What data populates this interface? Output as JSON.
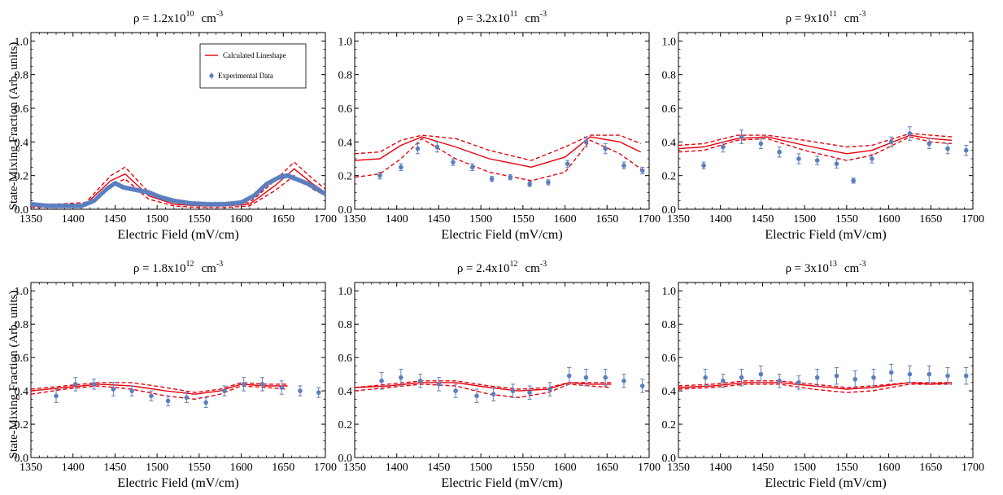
{
  "figure": {
    "ylabel": "State-Mixing Fraction (Arb. units)",
    "xlabel": "Electric Field (mV/cm)",
    "legend": {
      "calc": "Calculated Lineshape",
      "exp": "Experimental Data"
    },
    "colors": {
      "calc": "#e8000b",
      "exp": "#5b7fbe",
      "err": "#5b7fbe"
    }
  },
  "chart_data": [
    {
      "type": "line",
      "title": {
        "base": "ρ = 1.2x10",
        "exp": "10",
        "unit": "cm",
        "unit_exp": "-3"
      },
      "xlim": [
        1350,
        1700
      ],
      "ylim": [
        0,
        1.05
      ],
      "xticks": [
        1350,
        1400,
        1450,
        1500,
        1550,
        1600,
        1650,
        1700
      ],
      "yticks": [
        0.0,
        0.2,
        0.4,
        0.6,
        0.8,
        1.0
      ],
      "legend_position": "top-right",
      "series": [
        {
          "name": "Calculated Lineshape",
          "style": "solid",
          "x": [
            1350,
            1380,
            1415,
            1445,
            1462,
            1490,
            1520,
            1550,
            1580,
            1610,
            1640,
            1663,
            1685,
            1700
          ],
          "y": [
            0.02,
            0.02,
            0.03,
            0.17,
            0.21,
            0.08,
            0.03,
            0.02,
            0.02,
            0.03,
            0.14,
            0.24,
            0.15,
            0.1
          ]
        },
        {
          "style": "dashed",
          "x": [
            1350,
            1380,
            1415,
            1445,
            1462,
            1490,
            1520,
            1550,
            1580,
            1610,
            1640,
            1663,
            1685,
            1700
          ],
          "y": [
            0.03,
            0.03,
            0.04,
            0.2,
            0.25,
            0.1,
            0.04,
            0.03,
            0.03,
            0.04,
            0.17,
            0.28,
            0.18,
            0.12
          ]
        },
        {
          "style": "dashed",
          "x": [
            1350,
            1380,
            1415,
            1445,
            1462,
            1490,
            1520,
            1550,
            1580,
            1610,
            1640,
            1663,
            1685,
            1700
          ],
          "y": [
            0.01,
            0.01,
            0.02,
            0.14,
            0.18,
            0.06,
            0.02,
            0.01,
            0.01,
            0.02,
            0.11,
            0.2,
            0.12,
            0.08
          ]
        },
        {
          "name": "Experimental Data",
          "style": "markers-dense",
          "x": [
            1350,
            1370,
            1390,
            1410,
            1425,
            1440,
            1450,
            1460,
            1475,
            1490,
            1505,
            1520,
            1540,
            1560,
            1580,
            1600,
            1615,
            1630,
            1645,
            1655,
            1665,
            1680,
            1690,
            1700
          ],
          "y": [
            0.03,
            0.02,
            0.02,
            0.02,
            0.05,
            0.12,
            0.155,
            0.13,
            0.115,
            0.1,
            0.07,
            0.05,
            0.035,
            0.03,
            0.03,
            0.04,
            0.08,
            0.15,
            0.19,
            0.2,
            0.18,
            0.15,
            0.12,
            0.09
          ]
        }
      ]
    },
    {
      "type": "line",
      "title": {
        "base": "ρ = 3.2x10",
        "exp": "11",
        "unit": "cm",
        "unit_exp": "-3"
      },
      "xlim": [
        1350,
        1700
      ],
      "ylim": [
        0,
        1.05
      ],
      "xticks": [
        1350,
        1400,
        1450,
        1500,
        1550,
        1600,
        1650,
        1700
      ],
      "yticks": [
        0.0,
        0.2,
        0.4,
        0.6,
        0.8,
        1.0
      ],
      "series": [
        {
          "style": "solid",
          "x": [
            1350,
            1380,
            1405,
            1430,
            1470,
            1510,
            1560,
            1600,
            1630,
            1665,
            1690
          ],
          "y": [
            0.29,
            0.3,
            0.38,
            0.43,
            0.37,
            0.3,
            0.25,
            0.31,
            0.43,
            0.4,
            0.34
          ]
        },
        {
          "style": "dashed",
          "x": [
            1350,
            1380,
            1405,
            1430,
            1470,
            1510,
            1560,
            1600,
            1630,
            1665,
            1690
          ],
          "y": [
            0.33,
            0.34,
            0.41,
            0.44,
            0.42,
            0.35,
            0.29,
            0.37,
            0.44,
            0.44,
            0.39
          ]
        },
        {
          "style": "dashed",
          "x": [
            1350,
            1380,
            1405,
            1430,
            1470,
            1510,
            1560,
            1600,
            1630,
            1665,
            1690
          ],
          "y": [
            0.19,
            0.21,
            0.3,
            0.42,
            0.3,
            0.22,
            0.17,
            0.22,
            0.41,
            0.33,
            0.24
          ]
        },
        {
          "style": "markers",
          "x": [
            1380,
            1405,
            1425,
            1448,
            1467,
            1490,
            1513,
            1535,
            1558,
            1580,
            1603,
            1625,
            1648,
            1670,
            1692
          ],
          "y": [
            0.2,
            0.25,
            0.36,
            0.37,
            0.28,
            0.25,
            0.18,
            0.19,
            0.15,
            0.16,
            0.27,
            0.4,
            0.36,
            0.26,
            0.23
          ],
          "err": [
            0.02,
            0.02,
            0.03,
            0.03,
            0.02,
            0.02,
            0.015,
            0.015,
            0.015,
            0.015,
            0.02,
            0.03,
            0.03,
            0.02,
            0.02
          ]
        }
      ]
    },
    {
      "type": "line",
      "title": {
        "base": "ρ = 9x10",
        "exp": "11",
        "unit": "cm",
        "unit_exp": "-3"
      },
      "xlim": [
        1350,
        1700
      ],
      "ylim": [
        0,
        1.05
      ],
      "xticks": [
        1350,
        1400,
        1450,
        1500,
        1550,
        1600,
        1650,
        1700
      ],
      "yticks": [
        0.0,
        0.2,
        0.4,
        0.6,
        0.8,
        1.0
      ],
      "series": [
        {
          "style": "solid",
          "x": [
            1350,
            1380,
            1420,
            1455,
            1500,
            1550,
            1580,
            1625,
            1650,
            1675
          ],
          "y": [
            0.36,
            0.37,
            0.42,
            0.43,
            0.38,
            0.33,
            0.35,
            0.44,
            0.42,
            0.41
          ]
        },
        {
          "style": "dashed",
          "x": [
            1350,
            1380,
            1420,
            1455,
            1500,
            1550,
            1580,
            1625,
            1650,
            1675
          ],
          "y": [
            0.38,
            0.39,
            0.44,
            0.44,
            0.41,
            0.37,
            0.38,
            0.45,
            0.44,
            0.43
          ]
        },
        {
          "style": "dashed",
          "x": [
            1350,
            1380,
            1420,
            1455,
            1500,
            1550,
            1580,
            1625,
            1650,
            1675
          ],
          "y": [
            0.34,
            0.35,
            0.41,
            0.42,
            0.35,
            0.29,
            0.32,
            0.43,
            0.4,
            0.39
          ]
        },
        {
          "style": "markers",
          "x": [
            1380,
            1403,
            1425,
            1448,
            1470,
            1493,
            1515,
            1538,
            1558,
            1580,
            1603,
            1625,
            1648,
            1670,
            1692
          ],
          "y": [
            0.26,
            0.37,
            0.43,
            0.39,
            0.34,
            0.3,
            0.29,
            0.27,
            0.17,
            0.3,
            0.4,
            0.45,
            0.39,
            0.36,
            0.35
          ],
          "err": [
            0.02,
            0.03,
            0.04,
            0.03,
            0.03,
            0.03,
            0.025,
            0.025,
            0.015,
            0.025,
            0.03,
            0.04,
            0.03,
            0.03,
            0.03
          ]
        }
      ]
    },
    {
      "type": "line",
      "title": {
        "base": "ρ = 1.8x10",
        "exp": "12",
        "unit": "cm",
        "unit_exp": "-3"
      },
      "xlim": [
        1350,
        1700
      ],
      "ylim": [
        0,
        1.05
      ],
      "xticks": [
        1350,
        1400,
        1450,
        1500,
        1550,
        1600,
        1650,
        1700
      ],
      "yticks": [
        0.0,
        0.2,
        0.4,
        0.6,
        0.8,
        1.0
      ],
      "series": [
        {
          "style": "solid",
          "x": [
            1350,
            1390,
            1430,
            1470,
            1510,
            1545,
            1575,
            1600,
            1630,
            1655
          ],
          "y": [
            0.4,
            0.42,
            0.44,
            0.43,
            0.4,
            0.38,
            0.4,
            0.44,
            0.43,
            0.43
          ]
        },
        {
          "style": "dashed",
          "x": [
            1350,
            1390,
            1430,
            1470,
            1510,
            1545,
            1575,
            1600,
            1630,
            1655
          ],
          "y": [
            0.41,
            0.43,
            0.45,
            0.45,
            0.42,
            0.39,
            0.41,
            0.45,
            0.44,
            0.44
          ]
        },
        {
          "style": "dashed",
          "x": [
            1350,
            1390,
            1430,
            1470,
            1510,
            1545,
            1575,
            1600,
            1630,
            1655
          ],
          "y": [
            0.38,
            0.41,
            0.43,
            0.41,
            0.37,
            0.35,
            0.38,
            0.43,
            0.42,
            0.41
          ]
        },
        {
          "style": "markers",
          "x": [
            1380,
            1403,
            1425,
            1448,
            1470,
            1493,
            1513,
            1535,
            1558,
            1580,
            1603,
            1625,
            1648,
            1670,
            1692
          ],
          "y": [
            0.37,
            0.44,
            0.44,
            0.41,
            0.4,
            0.37,
            0.34,
            0.36,
            0.33,
            0.4,
            0.44,
            0.44,
            0.42,
            0.4,
            0.39
          ],
          "err": [
            0.04,
            0.04,
            0.03,
            0.04,
            0.03,
            0.03,
            0.03,
            0.03,
            0.03,
            0.03,
            0.04,
            0.04,
            0.04,
            0.03,
            0.03
          ]
        }
      ]
    },
    {
      "type": "line",
      "title": {
        "base": "ρ = 2.4x10",
        "exp": "12",
        "unit": "cm",
        "unit_exp": "-3"
      },
      "xlim": [
        1350,
        1700
      ],
      "ylim": [
        0,
        1.05
      ],
      "xticks": [
        1350,
        1400,
        1450,
        1500,
        1550,
        1600,
        1650,
        1700
      ],
      "yticks": [
        0.0,
        0.2,
        0.4,
        0.6,
        0.8,
        1.0
      ],
      "series": [
        {
          "style": "solid",
          "x": [
            1350,
            1390,
            1430,
            1470,
            1510,
            1545,
            1580,
            1605,
            1630,
            1655
          ],
          "y": [
            0.42,
            0.43,
            0.45,
            0.45,
            0.42,
            0.4,
            0.41,
            0.45,
            0.44,
            0.44
          ]
        },
        {
          "style": "dashed",
          "x": [
            1350,
            1390,
            1430,
            1470,
            1510,
            1545,
            1580,
            1605,
            1630,
            1655
          ],
          "y": [
            0.42,
            0.44,
            0.46,
            0.46,
            0.43,
            0.41,
            0.42,
            0.45,
            0.45,
            0.45
          ]
        },
        {
          "style": "dashed",
          "x": [
            1350,
            1390,
            1430,
            1470,
            1510,
            1545,
            1580,
            1605,
            1630,
            1655
          ],
          "y": [
            0.4,
            0.42,
            0.44,
            0.43,
            0.38,
            0.36,
            0.39,
            0.44,
            0.43,
            0.42
          ]
        },
        {
          "style": "markers",
          "x": [
            1382,
            1405,
            1428,
            1450,
            1470,
            1495,
            1515,
            1538,
            1558,
            1582,
            1605,
            1625,
            1648,
            1670,
            1692
          ],
          "y": [
            0.46,
            0.48,
            0.46,
            0.44,
            0.4,
            0.37,
            0.38,
            0.4,
            0.39,
            0.41,
            0.49,
            0.48,
            0.48,
            0.46,
            0.43
          ],
          "err": [
            0.05,
            0.05,
            0.04,
            0.04,
            0.04,
            0.04,
            0.04,
            0.04,
            0.04,
            0.04,
            0.05,
            0.05,
            0.05,
            0.04,
            0.04
          ]
        }
      ]
    },
    {
      "type": "line",
      "title": {
        "base": "ρ = 3x10",
        "exp": "13",
        "unit": "cm",
        "unit_exp": "-3"
      },
      "xlim": [
        1350,
        1700
      ],
      "ylim": [
        0,
        1.05
      ],
      "xticks": [
        1350,
        1400,
        1450,
        1500,
        1550,
        1600,
        1650,
        1700
      ],
      "yticks": [
        0.0,
        0.2,
        0.4,
        0.6,
        0.8,
        1.0
      ],
      "series": [
        {
          "style": "solid",
          "x": [
            1350,
            1390,
            1430,
            1470,
            1510,
            1550,
            1580,
            1625,
            1650,
            1675
          ],
          "y": [
            0.42,
            0.43,
            0.45,
            0.45,
            0.43,
            0.41,
            0.42,
            0.45,
            0.44,
            0.45
          ]
        },
        {
          "style": "dashed",
          "x": [
            1350,
            1390,
            1430,
            1470,
            1510,
            1550,
            1580,
            1625,
            1650,
            1675
          ],
          "y": [
            0.43,
            0.44,
            0.46,
            0.46,
            0.44,
            0.42,
            0.43,
            0.45,
            0.45,
            0.45
          ]
        },
        {
          "style": "dashed",
          "x": [
            1350,
            1390,
            1430,
            1470,
            1510,
            1550,
            1580,
            1625,
            1650,
            1675
          ],
          "y": [
            0.41,
            0.42,
            0.44,
            0.44,
            0.41,
            0.39,
            0.4,
            0.44,
            0.44,
            0.44
          ]
        },
        {
          "style": "markers",
          "x": [
            1382,
            1403,
            1425,
            1448,
            1470,
            1493,
            1515,
            1538,
            1560,
            1582,
            1603,
            1625,
            1648,
            1670,
            1692
          ],
          "y": [
            0.48,
            0.46,
            0.48,
            0.5,
            0.46,
            0.45,
            0.48,
            0.49,
            0.47,
            0.48,
            0.51,
            0.5,
            0.5,
            0.49,
            0.49
          ],
          "err": [
            0.05,
            0.04,
            0.05,
            0.05,
            0.04,
            0.04,
            0.05,
            0.05,
            0.05,
            0.05,
            0.05,
            0.05,
            0.05,
            0.05,
            0.05
          ]
        }
      ]
    }
  ]
}
